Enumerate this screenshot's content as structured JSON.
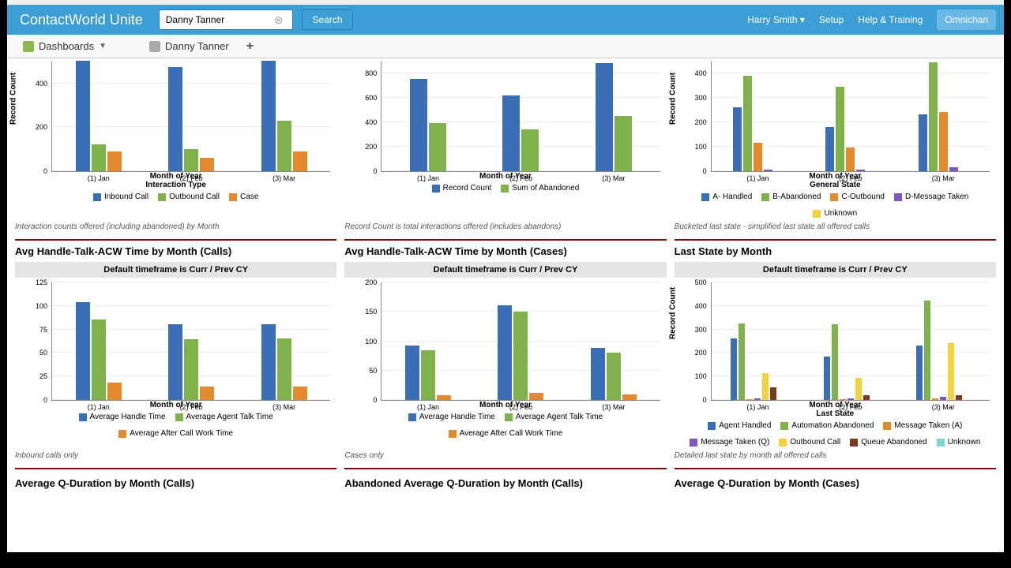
{
  "header": {
    "app_title": "ContactWorld Unite",
    "search_value": "Danny Tanner",
    "search_button": "Search",
    "user": "Harry Smith",
    "setup": "Setup",
    "help": "Help & Training",
    "omni": "Omnichan"
  },
  "tabs": {
    "dashboards": "Dashboards",
    "record": "Danny Tanner"
  },
  "colors": {
    "blue": "#3a6fb7",
    "green": "#7fb24a",
    "orange": "#e48a2d",
    "purple": "#7e57c2",
    "yellow": "#f2d43a",
    "brown": "#7a3b1f",
    "cyan": "#7fd6d0",
    "grid": "#eeeeee"
  },
  "row1": {
    "categories": [
      "(1) Jan",
      "(2) Feb",
      "(3) Mar"
    ],
    "chart1": {
      "y_label": "Record Count",
      "x_label": "Month of Year",
      "sub_label": "Interaction Type",
      "ymax": 500,
      "ystep": 200,
      "series": [
        {
          "name": "Inbound Call",
          "color": "blue",
          "values": [
            500,
            470,
            500
          ]
        },
        {
          "name": "Outbound Call",
          "color": "green",
          "values": [
            120,
            100,
            230
          ]
        },
        {
          "name": "Case",
          "color": "orange",
          "values": [
            90,
            60,
            90
          ]
        }
      ],
      "caption": "Interaction counts offered (including abandoned) by Month"
    },
    "chart2": {
      "x_label": "Month of Year",
      "ymax": 900,
      "ystep": 200,
      "series": [
        {
          "name": "Record Count",
          "color": "blue",
          "values": [
            750,
            620,
            880
          ]
        },
        {
          "name": "Sum of Abandoned",
          "color": "green",
          "values": [
            390,
            340,
            450
          ]
        }
      ],
      "caption": "Record Count is total interactions offered (includes abandons)"
    },
    "chart3": {
      "y_label": "Record Count",
      "x_label": "Month of Year",
      "sub_label": "General State",
      "ymax": 450,
      "ystep": 100,
      "series": [
        {
          "name": "A- Handled",
          "color": "blue",
          "values": [
            260,
            180,
            230
          ]
        },
        {
          "name": "B-Abandoned",
          "color": "green",
          "values": [
            390,
            345,
            445
          ]
        },
        {
          "name": "C-Outbound",
          "color": "orange",
          "values": [
            115,
            95,
            240
          ]
        },
        {
          "name": "D-Message Taken",
          "color": "purple",
          "values": [
            8,
            6,
            15
          ]
        },
        {
          "name": "Unknown",
          "color": "yellow",
          "values": [
            0,
            0,
            0
          ]
        }
      ],
      "caption": "Bucketed last state - simplified last state all offered calls"
    }
  },
  "row2": {
    "subhead": "Default timeframe is Curr / Prev CY",
    "categories": [
      "(1) Jan",
      "(2) Feb",
      "(3) Mar"
    ],
    "chart1": {
      "title": "Avg Handle-Talk-ACW Time by Month (Calls)",
      "x_label": "Month of Year",
      "ymax": 125,
      "ystep": 25,
      "series": [
        {
          "name": "Average Handle Time",
          "color": "blue",
          "values": [
            103,
            80,
            80
          ]
        },
        {
          "name": "Average Agent Talk Time",
          "color": "green",
          "values": [
            85,
            64,
            65
          ]
        },
        {
          "name": "Average After Call Work Time",
          "color": "orange",
          "values": [
            18,
            14,
            14
          ]
        }
      ],
      "caption": "Inbound calls only"
    },
    "chart2": {
      "title": "Avg Handle-Talk-ACW Time by Month (Cases)",
      "x_label": "Month of Year",
      "ymax": 200,
      "ystep": 50,
      "series": [
        {
          "name": "Average Handle Time",
          "color": "blue",
          "values": [
            92,
            160,
            88
          ]
        },
        {
          "name": "Average Agent Talk Time",
          "color": "green",
          "values": [
            84,
            150,
            80
          ]
        },
        {
          "name": "Average After Call Work Time",
          "color": "orange",
          "values": [
            8,
            12,
            10
          ]
        }
      ],
      "caption": "Cases only"
    },
    "chart3": {
      "title": "Last State by Month",
      "y_label": "Record Count",
      "x_label": "Month of Year",
      "sub_label": "Last State",
      "ymax": 500,
      "ystep": 100,
      "series": [
        {
          "name": "Agent Handled",
          "color": "blue",
          "values": [
            260,
            185,
            230
          ]
        },
        {
          "name": "Automation Abandoned",
          "color": "green",
          "values": [
            325,
            320,
            420
          ]
        },
        {
          "name": "Message Taken (A)",
          "color": "orange",
          "values": [
            5,
            4,
            6
          ]
        },
        {
          "name": "Message Taken (Q)",
          "color": "purple",
          "values": [
            6,
            8,
            12
          ]
        },
        {
          "name": "Outbound Call",
          "color": "yellow",
          "values": [
            115,
            95,
            240
          ]
        },
        {
          "name": "Queue Abandoned",
          "color": "brown",
          "values": [
            55,
            20,
            20
          ]
        },
        {
          "name": "Unknown",
          "color": "cyan",
          "values": [
            0,
            0,
            0
          ]
        }
      ],
      "caption": "Detailed last state by month all offered calls"
    }
  },
  "row3": {
    "t1": "Average Q-Duration by Month (Calls)",
    "t2": "Abandoned Average Q-Duration by Month (Calls)",
    "t3": "Average Q-Duration by Month (Cases)"
  }
}
